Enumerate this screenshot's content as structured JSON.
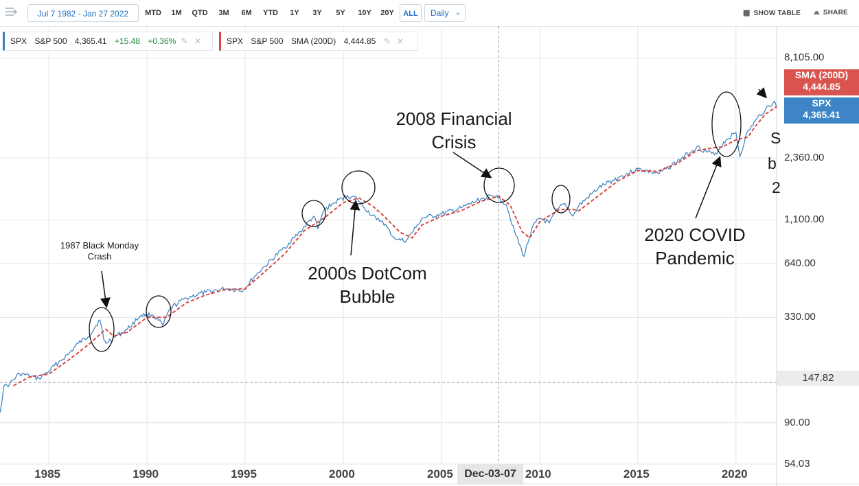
{
  "toolbar": {
    "date_range": "Jul 7 1982 - Jan 27 2022",
    "periods": [
      "MTD",
      "1M",
      "QTD",
      "3M",
      "6M",
      "YTD",
      "1Y",
      "3Y",
      "5Y",
      "10Y",
      "20Y",
      "ALL"
    ],
    "active_period": "ALL",
    "interval": "Daily",
    "show_table": "SHOW TABLE",
    "share": "SHARE"
  },
  "legend_spx": {
    "symbol": "SPX",
    "name": "S&P 500",
    "value": "4,365.41",
    "change": "+15.48",
    "change_pct": "+0.36%",
    "color": "#3a7ec0"
  },
  "legend_sma": {
    "symbol": "SPX",
    "name": "S&P 500",
    "indicator": "SMA (200D)",
    "value": "4,444.85",
    "color": "#d9453f"
  },
  "tags": {
    "sma_label": "SMA (200D)",
    "sma_value": "4,444.85",
    "sma_color": "#d9534f",
    "spx_label": "SPX",
    "spx_value": "4,365.41",
    "spx_color": "#3d85c6"
  },
  "crosshair": {
    "price": "147.82",
    "date": "Dec-03-07"
  },
  "annotations": {
    "black_monday": "1987 Black Monday Crash",
    "dotcom": "2000s DotCom Bubble",
    "financial": "2008 Financial Crisis",
    "covid": "2020 COVID Pandemic",
    "clipped": [
      "S",
      "b",
      "2"
    ]
  },
  "chart_data": {
    "type": "line",
    "y_scale": "log",
    "ylim": [
      54.03,
      12000
    ],
    "y_ticks": [
      "8,105.00",
      "2,360.00",
      "1,100.00",
      "640.00",
      "330.00",
      "90.00",
      "54.03"
    ],
    "y_tick_values": [
      8105,
      2360,
      1100,
      640,
      330,
      90,
      54.03
    ],
    "x_ticks": [
      "1985",
      "1990",
      "1995",
      "2000",
      "2005",
      "2010",
      "2015",
      "2020"
    ],
    "x_tick_values": [
      1985,
      1990,
      1995,
      2000,
      2005,
      2010,
      2015,
      2020
    ],
    "xlim": [
      1982.51,
      2022.07
    ],
    "series": [
      {
        "name": "SPX",
        "color": "#3a7ec0",
        "style": "solid",
        "x": [
          1982.51,
          1982.7,
          1983.0,
          1983.5,
          1984.0,
          1984.5,
          1985.0,
          1985.5,
          1986.0,
          1986.5,
          1987.0,
          1987.6,
          1987.8,
          1987.9,
          1988.5,
          1989.0,
          1989.7,
          1990.3,
          1990.8,
          1991.2,
          1992.0,
          1993.0,
          1994.0,
          1994.9,
          1995.5,
          1996.0,
          1997.0,
          1997.8,
          1998.5,
          1998.7,
          1999.0,
          1999.5,
          2000.2,
          2000.7,
          2001.0,
          2001.7,
          2002.0,
          2002.5,
          2002.8,
          2003.2,
          2003.7,
          2004.0,
          2005.0,
          2006.0,
          2007.0,
          2007.8,
          2008.3,
          2008.8,
          2009.2,
          2009.6,
          2010.0,
          2010.5,
          2011.0,
          2011.3,
          2011.7,
          2012.0,
          2013.0,
          2014.0,
          2015.0,
          2015.7,
          2016.1,
          2017.0,
          2018.0,
          2018.9,
          2019.5,
          2020.0,
          2020.2,
          2020.5,
          2021.0,
          2021.5,
          2021.95,
          2022.07
        ],
        "y": [
          102,
          140,
          145,
          165,
          160,
          155,
          170,
          190,
          210,
          240,
          260,
          320,
          250,
          240,
          265,
          285,
          340,
          340,
          300,
          370,
          420,
          450,
          470,
          460,
          550,
          620,
          780,
          950,
          1150,
          980,
          1230,
          1350,
          1480,
          1430,
          1300,
          1100,
          1080,
          900,
          860,
          850,
          1000,
          1120,
          1180,
          1270,
          1420,
          1490,
          1330,
          900,
          700,
          990,
          1120,
          1060,
          1280,
          1340,
          1150,
          1310,
          1630,
          1850,
          2060,
          1980,
          1950,
          2250,
          2700,
          2450,
          2950,
          3230,
          2400,
          3100,
          3750,
          4300,
          4750,
          4365.41
        ]
      },
      {
        "name": "SMA (200D)",
        "color": "#d9453f",
        "style": "dashed",
        "x": [
          1983.2,
          1984.0,
          1985.0,
          1986.0,
          1987.0,
          1987.9,
          1988.3,
          1989.0,
          1990.0,
          1991.0,
          1992.0,
          1993.0,
          1994.0,
          1995.0,
          1996.0,
          1997.0,
          1998.0,
          1999.0,
          2000.0,
          2000.8,
          2001.5,
          2002.0,
          2002.9,
          2003.5,
          2004.0,
          2005.0,
          2006.0,
          2007.0,
          2007.9,
          2008.5,
          2009.1,
          2009.5,
          2010.0,
          2011.0,
          2011.7,
          2012.0,
          2013.0,
          2014.0,
          2015.0,
          2016.0,
          2017.0,
          2018.0,
          2018.9,
          2019.3,
          2020.0,
          2020.6,
          2021.0,
          2021.5,
          2022.07
        ],
        "y": [
          142,
          158,
          164,
          195,
          235,
          285,
          262,
          275,
          330,
          330,
          395,
          435,
          465,
          470,
          580,
          720,
          960,
          1120,
          1360,
          1440,
          1300,
          1170,
          940,
          880,
          1030,
          1150,
          1230,
          1380,
          1470,
          1320,
          950,
          880,
          1070,
          1250,
          1250,
          1230,
          1480,
          1780,
          2020,
          2000,
          2200,
          2580,
          2680,
          2700,
          2950,
          3050,
          3500,
          4050,
          4444.85
        ]
      }
    ]
  }
}
